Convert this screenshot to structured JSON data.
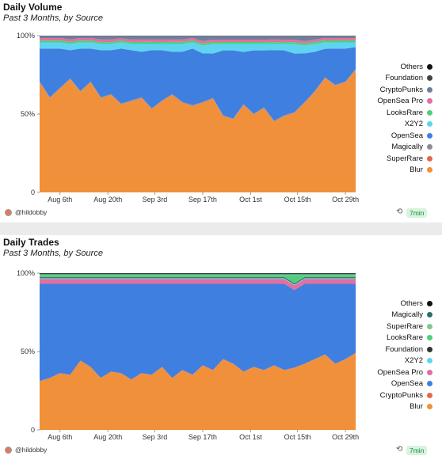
{
  "panels": [
    {
      "title": "Daily Volume",
      "subtitle": "Past 3 Months, by Source",
      "footer": {
        "user": "@hildobby",
        "refresh_icon": "refresh-icon",
        "age": "7min"
      },
      "legend": [
        {
          "label": "Others",
          "color": "#111111"
        },
        {
          "label": "Foundation",
          "color": "#444444"
        },
        {
          "label": "CryptoPunks",
          "color": "#6e7f99"
        },
        {
          "label": "OpenSea Pro",
          "color": "#e36f9f"
        },
        {
          "label": "LooksRare",
          "color": "#4fcf7e"
        },
        {
          "label": "X2Y2",
          "color": "#5fd4f0"
        },
        {
          "label": "OpenSea",
          "color": "#3f7fe0"
        },
        {
          "label": "Magically",
          "color": "#8e8e8e"
        },
        {
          "label": "SuperRare",
          "color": "#e06a4f"
        },
        {
          "label": "Blur",
          "color": "#f0903a"
        }
      ]
    },
    {
      "title": "Daily Trades",
      "subtitle": "Past 3 Months, by Source",
      "footer": {
        "user": "@hildobby",
        "refresh_icon": "refresh-icon",
        "age": "7min"
      },
      "legend": [
        {
          "label": "Others",
          "color": "#111111"
        },
        {
          "label": "Magically",
          "color": "#2b6f6a"
        },
        {
          "label": "SuperRare",
          "color": "#7fc98a"
        },
        {
          "label": "LooksRare",
          "color": "#4fcf7e"
        },
        {
          "label": "Foundation",
          "color": "#333333"
        },
        {
          "label": "X2Y2",
          "color": "#5fd4f0"
        },
        {
          "label": "OpenSea Pro",
          "color": "#e36f9f"
        },
        {
          "label": "OpenSea",
          "color": "#3f7fe0"
        },
        {
          "label": "CryptoPunks",
          "color": "#e06a4f"
        },
        {
          "label": "Blur",
          "color": "#f0903a"
        }
      ]
    }
  ],
  "chart_data": [
    {
      "type": "area",
      "title": "Daily Volume",
      "subtitle": "Past 3 Months, by Source",
      "stacked": true,
      "normalized": true,
      "x_ticks": [
        "Aug 6th",
        "Aug 20th",
        "Sep 3rd",
        "Sep 17th",
        "Oct 1st",
        "Oct 15th",
        "Oct 29th"
      ],
      "y_ticks": [
        "0",
        "50%",
        "100%"
      ],
      "ylim": [
        0,
        100
      ],
      "x": [
        "Aug 1",
        "Aug 4",
        "Aug 7",
        "Aug 10",
        "Aug 13",
        "Aug 16",
        "Aug 19",
        "Aug 22",
        "Aug 25",
        "Aug 28",
        "Aug 31",
        "Sep 3",
        "Sep 6",
        "Sep 9",
        "Sep 12",
        "Sep 15",
        "Sep 18",
        "Sep 21",
        "Sep 24",
        "Sep 27",
        "Sep 30",
        "Oct 3",
        "Oct 6",
        "Oct 9",
        "Oct 12",
        "Oct 15",
        "Oct 18",
        "Oct 21",
        "Oct 24",
        "Oct 27",
        "Oct 30",
        "Nov 1"
      ],
      "series": [
        {
          "name": "Blur",
          "values": [
            70,
            60,
            66,
            72,
            64,
            70,
            60,
            62,
            56,
            58,
            60,
            53,
            58,
            62,
            57,
            55,
            57,
            59,
            48,
            46,
            55,
            49,
            53,
            45,
            48,
            50,
            57,
            64,
            72,
            68,
            70,
            78
          ]
        },
        {
          "name": "SuperRare",
          "values": [
            0.3,
            0.3,
            0.3,
            0.3,
            0.3,
            0.3,
            0.3,
            0.3,
            0.3,
            0.3,
            0.3,
            0.3,
            0.3,
            0.3,
            0.3,
            0.3,
            0.3,
            0.3,
            0.3,
            0.3,
            0.3,
            0.3,
            0.3,
            0.3,
            0.3,
            0.3,
            0.3,
            0.3,
            0.3,
            0.3,
            0.3,
            0.3
          ]
        },
        {
          "name": "Magically",
          "values": [
            0.4,
            0.4,
            0.4,
            0.4,
            0.4,
            0.4,
            0.4,
            0.4,
            0.4,
            0.4,
            0.4,
            0.4,
            0.4,
            0.4,
            0.4,
            0.4,
            0.4,
            0.4,
            0.4,
            0.4,
            0.4,
            0.4,
            0.4,
            0.4,
            0.4,
            0.4,
            0.4,
            0.4,
            0.4,
            0.4,
            0.4,
            0.4
          ]
        },
        {
          "name": "OpenSea",
          "values": [
            21,
            31,
            25,
            18,
            27,
            21,
            30,
            28,
            35,
            32,
            29,
            37,
            32,
            27,
            32,
            36,
            31,
            28,
            41,
            43,
            33,
            40,
            36,
            45,
            41,
            37,
            31,
            25,
            18,
            23,
            21,
            14
          ]
        },
        {
          "name": "X2Y2",
          "values": [
            4,
            4,
            4,
            4,
            4,
            4,
            4,
            4,
            4,
            4,
            5,
            4,
            4,
            5,
            5,
            4,
            5,
            6,
            4,
            4,
            5,
            4,
            4,
            4,
            4,
            6,
            5,
            5,
            4,
            4,
            4,
            3
          ]
        },
        {
          "name": "LooksRare",
          "values": [
            1.2,
            1.2,
            1.2,
            1.3,
            1.2,
            1.2,
            1.2,
            1.2,
            1.1,
            1.2,
            1.3,
            1.3,
            1.2,
            1.3,
            1.3,
            1.2,
            1.3,
            1.3,
            1.3,
            1.3,
            1.3,
            1.3,
            1.3,
            1.2,
            1.3,
            1.2,
            1.3,
            1.3,
            1.3,
            1.3,
            1.3,
            1.3
          ]
        },
        {
          "name": "OpenSea Pro",
          "values": [
            1.6,
            1.6,
            1.6,
            1.5,
            1.6,
            1.6,
            1.6,
            1.6,
            1.5,
            1.6,
            1.5,
            1.5,
            1.6,
            1.5,
            1.5,
            1.6,
            1.5,
            1.5,
            1.5,
            1.5,
            1.5,
            1.5,
            1.5,
            1.6,
            1.5,
            1.6,
            1.5,
            1.5,
            1.5,
            1.5,
            1.5,
            1.5
          ]
        },
        {
          "name": "CryptoPunks",
          "values": [
            1.3,
            1.3,
            1.3,
            2.3,
            1.3,
            1.3,
            2.3,
            2.3,
            1.5,
            2.3,
            2.3,
            2.3,
            2.3,
            2.3,
            2.3,
            1.3,
            3.3,
            2.3,
            2.3,
            2.3,
            2.3,
            2.3,
            2.3,
            2.3,
            2.3,
            2.3,
            3.3,
            2.3,
            1.3,
            1.3,
            1.3,
            1.3
          ]
        },
        {
          "name": "Foundation",
          "values": [
            0.2,
            0.2,
            0.2,
            0.2,
            0.2,
            0.2,
            0.2,
            0.2,
            0.2,
            0.2,
            0.2,
            0.2,
            0.2,
            0.2,
            0.2,
            0.2,
            0.2,
            0.2,
            0.2,
            0.2,
            0.2,
            0.2,
            0.2,
            0.2,
            0.2,
            0.2,
            0.2,
            0.2,
            0.2,
            0.2,
            0.2,
            0.2
          ]
        },
        {
          "name": "Others",
          "values": [
            0,
            0,
            0,
            0,
            0,
            0,
            0,
            0,
            0,
            0,
            0,
            0,
            0,
            0,
            0,
            0,
            0,
            0,
            0,
            0,
            0,
            0,
            0,
            0,
            0,
            0,
            0,
            0,
            0,
            0,
            0,
            0
          ]
        }
      ]
    },
    {
      "type": "area",
      "title": "Daily Trades",
      "subtitle": "Past 3 Months, by Source",
      "stacked": true,
      "normalized": true,
      "x_ticks": [
        "Aug 6th",
        "Aug 20th",
        "Sep 3rd",
        "Sep 17th",
        "Oct 1st",
        "Oct 15th",
        "Oct 29th"
      ],
      "y_ticks": [
        "0",
        "50%",
        "100%"
      ],
      "ylim": [
        0,
        100
      ],
      "x": [
        "Aug 1",
        "Aug 4",
        "Aug 7",
        "Aug 10",
        "Aug 13",
        "Aug 16",
        "Aug 19",
        "Aug 22",
        "Aug 25",
        "Aug 28",
        "Aug 31",
        "Sep 3",
        "Sep 6",
        "Sep 9",
        "Sep 12",
        "Sep 15",
        "Sep 18",
        "Sep 21",
        "Sep 24",
        "Sep 27",
        "Sep 30",
        "Oct 3",
        "Oct 6",
        "Oct 9",
        "Oct 12",
        "Oct 15",
        "Oct 18",
        "Oct 21",
        "Oct 24",
        "Oct 27",
        "Oct 30",
        "Nov 1"
      ],
      "series": [
        {
          "name": "Blur",
          "values": [
            31,
            33,
            36,
            35,
            44,
            40,
            33,
            37,
            36,
            32,
            36,
            35,
            40,
            33,
            38,
            35,
            41,
            38,
            45,
            42,
            37,
            40,
            38,
            41,
            38,
            40,
            42,
            45,
            48,
            42,
            45,
            49
          ]
        },
        {
          "name": "CryptoPunks",
          "values": [
            0.2,
            0.2,
            0.2,
            0.2,
            0.2,
            0.2,
            0.2,
            0.2,
            0.2,
            0.2,
            0.2,
            0.2,
            0.2,
            0.2,
            0.2,
            0.2,
            0.2,
            0.2,
            0.2,
            0.2,
            0.2,
            0.2,
            0.2,
            0.2,
            0.2,
            0.2,
            0.2,
            0.2,
            0.2,
            0.2,
            0.2,
            0.2
          ]
        },
        {
          "name": "OpenSea",
          "values": [
            62,
            60,
            57,
            58,
            49,
            53,
            60,
            56,
            57,
            61,
            57,
            58,
            53,
            60,
            55,
            58,
            52,
            55,
            48,
            51,
            56,
            53,
            55,
            52,
            55,
            50,
            51,
            48,
            45,
            51,
            48,
            44
          ]
        },
        {
          "name": "OpenSea Pro",
          "values": [
            3,
            3,
            3,
            3,
            3,
            3,
            3,
            3,
            3,
            3,
            3,
            3,
            3,
            3,
            3,
            3,
            3,
            3,
            3,
            3,
            3,
            3,
            3,
            3,
            3,
            3,
            3,
            3,
            3,
            3,
            3,
            3
          ]
        },
        {
          "name": "X2Y2",
          "values": [
            0.6,
            0.6,
            0.6,
            0.6,
            0.6,
            0.6,
            0.6,
            0.6,
            0.6,
            0.6,
            0.6,
            0.6,
            0.6,
            0.6,
            0.6,
            0.6,
            0.6,
            0.6,
            0.6,
            0.6,
            0.6,
            0.6,
            0.6,
            0.6,
            0.6,
            0.6,
            0.6,
            0.6,
            0.6,
            0.6,
            0.6,
            0.6
          ]
        },
        {
          "name": "Foundation",
          "values": [
            0.5,
            0.5,
            0.5,
            0.5,
            0.5,
            0.5,
            0.5,
            0.5,
            0.5,
            0.5,
            0.5,
            0.5,
            0.5,
            0.5,
            0.5,
            0.5,
            0.5,
            0.5,
            0.5,
            0.5,
            0.5,
            0.5,
            0.5,
            0.5,
            0.5,
            0.5,
            0.5,
            0.5,
            0.5,
            0.5,
            0.5,
            0.5
          ]
        },
        {
          "name": "LooksRare",
          "values": [
            1.5,
            1.5,
            1.5,
            1.5,
            1.5,
            1.5,
            1.5,
            1.5,
            1.5,
            1.5,
            1.5,
            1.5,
            1.5,
            1.5,
            1.5,
            1.5,
            1.5,
            1.5,
            1.5,
            1.5,
            1.5,
            1.5,
            1.5,
            1.5,
            1.5,
            5.5,
            1.5,
            1.5,
            1.5,
            1.5,
            1.5,
            1.5
          ]
        },
        {
          "name": "SuperRare",
          "values": [
            0.4,
            0.4,
            0.4,
            0.4,
            0.4,
            0.4,
            0.4,
            0.4,
            0.4,
            0.4,
            0.4,
            0.4,
            0.4,
            0.4,
            0.4,
            0.4,
            0.4,
            0.4,
            0.4,
            0.4,
            0.4,
            0.4,
            0.4,
            0.4,
            0.4,
            0.4,
            0.4,
            0.4,
            0.4,
            0.4,
            0.4,
            0.4
          ]
        },
        {
          "name": "Magically",
          "values": [
            0.5,
            0.5,
            0.5,
            0.5,
            0.5,
            0.5,
            0.5,
            0.5,
            0.5,
            0.5,
            0.5,
            0.5,
            0.5,
            0.5,
            0.5,
            0.5,
            0.5,
            0.5,
            0.5,
            0.5,
            0.5,
            0.5,
            0.5,
            0.5,
            0.5,
            0.5,
            0.5,
            0.5,
            0.5,
            0.5,
            0.5,
            0.5
          ]
        },
        {
          "name": "Others",
          "values": [
            0.3,
            0.3,
            0.3,
            0.3,
            0.3,
            0.3,
            0.3,
            0.3,
            0.3,
            0.3,
            0.3,
            0.3,
            0.3,
            0.3,
            0.3,
            0.3,
            0.3,
            0.3,
            0.3,
            0.3,
            0.3,
            0.3,
            0.3,
            0.3,
            0.3,
            0.3,
            0.3,
            0.3,
            0.3,
            0.3,
            0.3,
            0.3
          ]
        }
      ]
    }
  ]
}
